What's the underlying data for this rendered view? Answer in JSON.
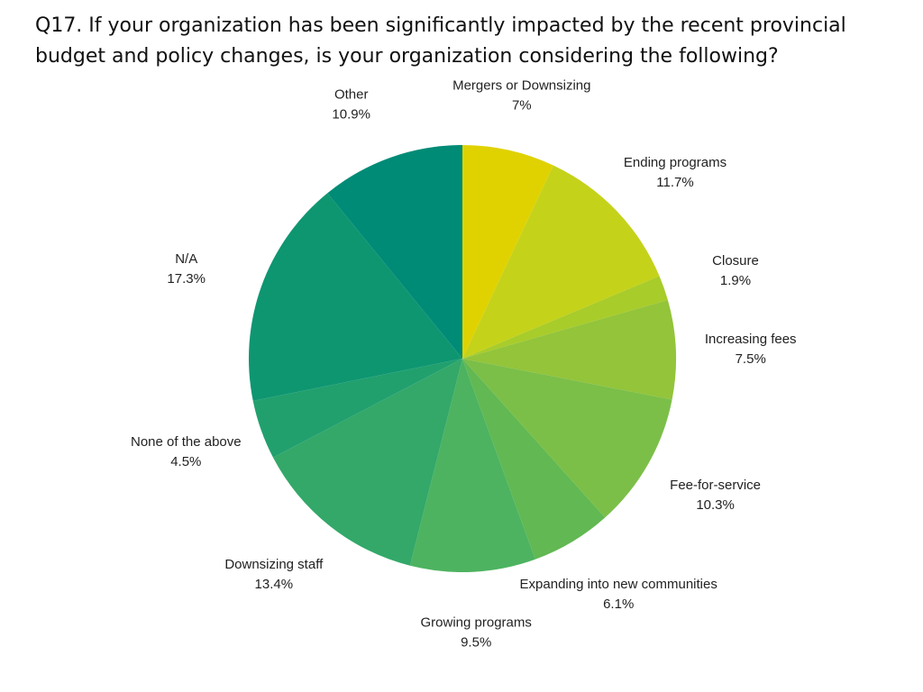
{
  "chart_data": {
    "type": "pie",
    "title": "Q17. If your organization has been significantly impacted by the recent provincial budget and policy changes, is your organization considering the following?",
    "unit": "%",
    "slices": [
      {
        "label": "Mergers or Downsizing",
        "value": 7,
        "value_label": "7%",
        "color": "#e0d200"
      },
      {
        "label": "Ending programs",
        "value": 11.7,
        "value_label": "11.7%",
        "color": "#c5d21a"
      },
      {
        "label": "Closure",
        "value": 1.9,
        "value_label": "1.9%",
        "color": "#a8cc2a"
      },
      {
        "label": "Increasing fees",
        "value": 7.5,
        "value_label": "7.5%",
        "color": "#93c43a"
      },
      {
        "label": "Fee-for-service",
        "value": 10.3,
        "value_label": "10.3%",
        "color": "#7bbf48"
      },
      {
        "label": "Expanding into new communities",
        "value": 6.1,
        "value_label": "6.1%",
        "color": "#62b852"
      },
      {
        "label": "Growing programs",
        "value": 9.5,
        "value_label": "9.5%",
        "color": "#4db360"
      },
      {
        "label": "Downsizing staff",
        "value": 13.4,
        "value_label": "13.4%",
        "color": "#33a869"
      },
      {
        "label": "None of the above",
        "value": 4.5,
        "value_label": "4.5%",
        "color": "#21a06e"
      },
      {
        "label": "N/A",
        "value": 17.3,
        "value_label": "17.3%",
        "color": "#0e9671"
      },
      {
        "label": "Other",
        "value": 10.9,
        "value_label": "10.9%",
        "color": "#008b76"
      }
    ]
  }
}
